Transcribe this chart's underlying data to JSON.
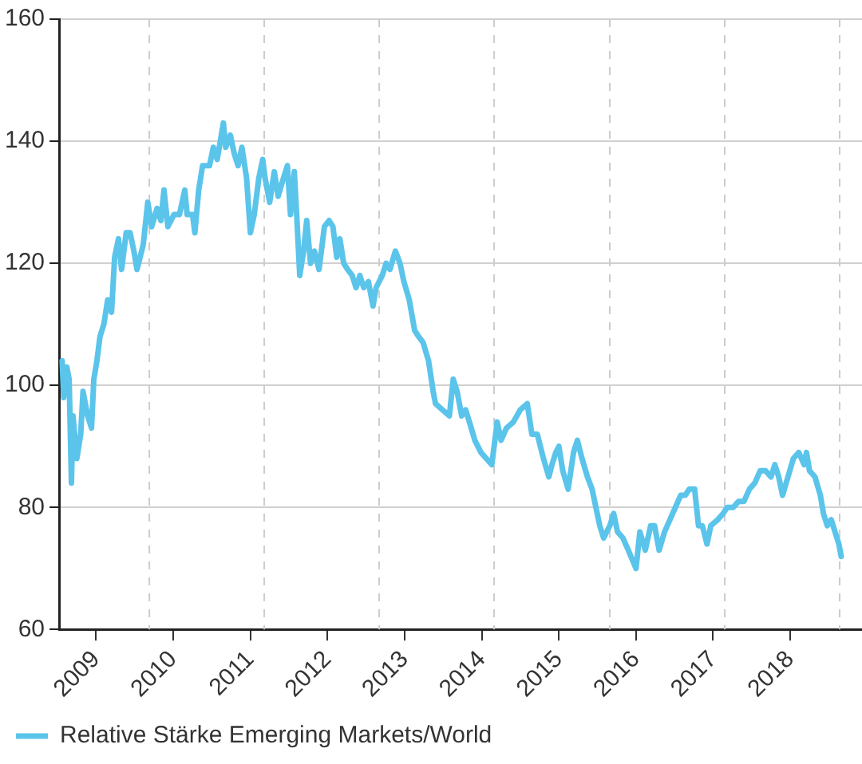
{
  "chart_data": {
    "type": "line",
    "series": [
      {
        "name": "Relative Stärke Emerging Markets/World",
        "color": "#5bc4ea",
        "x": [
          2008.56,
          2008.58,
          2008.62,
          2008.65,
          2008.68,
          2008.7,
          2008.75,
          2008.8,
          2008.83,
          2008.89,
          2008.94,
          2008.97,
          2009.01,
          2009.05,
          2009.1,
          2009.15,
          2009.2,
          2009.24,
          2009.29,
          2009.33,
          2009.39,
          2009.44,
          2009.49,
          2009.53,
          2009.61,
          2009.67,
          2009.72,
          2009.79,
          2009.84,
          2009.88,
          2009.93,
          2010.01,
          2010.08,
          2010.15,
          2010.18,
          2010.25,
          2010.28,
          2010.33,
          2010.38,
          2010.47,
          2010.52,
          2010.57,
          2010.65,
          2010.68,
          2010.74,
          2010.79,
          2010.84,
          2010.89,
          2010.95,
          2011.0,
          2011.05,
          2011.11,
          2011.16,
          2011.19,
          2011.25,
          2011.31,
          2011.36,
          2011.43,
          2011.48,
          2011.52,
          2011.57,
          2011.6,
          2011.64,
          2011.69,
          2011.73,
          2011.78,
          2011.83,
          2011.89,
          2011.96,
          2012.02,
          2012.07,
          2012.12,
          2012.16,
          2012.21,
          2012.26,
          2012.32,
          2012.37,
          2012.42,
          2012.47,
          2012.53,
          2012.59,
          2012.63,
          2012.71,
          2012.76,
          2012.81,
          2012.88,
          2012.94,
          2012.99,
          2013.06,
          2013.13,
          2013.18,
          2013.24,
          2013.31,
          2013.37,
          2013.4,
          2013.49,
          2013.58,
          2013.63,
          2013.68,
          2013.74,
          2013.79,
          2013.84,
          2013.91,
          2013.99,
          2014.13,
          2014.2,
          2014.25,
          2014.32,
          2014.41,
          2014.5,
          2014.59,
          2014.65,
          2014.72,
          2014.8,
          2014.87,
          2014.91,
          2014.96,
          2015.0,
          2015.05,
          2015.12,
          2015.19,
          2015.24,
          2015.3,
          2015.37,
          2015.43,
          2015.48,
          2015.53,
          2015.58,
          2015.66,
          2015.71,
          2015.76,
          2015.83,
          2015.9,
          2016.0,
          2016.05,
          2016.12,
          2016.19,
          2016.24,
          2016.3,
          2016.37,
          2016.44,
          2016.51,
          2016.58,
          2016.64,
          2016.69,
          2016.76,
          2016.81,
          2016.86,
          2016.92,
          2016.97,
          2017.06,
          2017.13,
          2017.18,
          2017.26,
          2017.33,
          2017.4,
          2017.47,
          2017.54,
          2017.61,
          2017.68,
          2017.75,
          2017.8,
          2017.85,
          2017.9,
          2017.97,
          2018.04,
          2018.11,
          2018.18,
          2018.21,
          2018.25,
          2018.32,
          2018.39,
          2018.43,
          2018.48,
          2018.53,
          2018.58,
          2018.63,
          2018.66
        ],
        "values": [
          104,
          98,
          103,
          101,
          84,
          95,
          88,
          92,
          99,
          95,
          93,
          101,
          104,
          108,
          110,
          114,
          112,
          121,
          124,
          119,
          125,
          125,
          122,
          119,
          123,
          130,
          126,
          129,
          127,
          132,
          126,
          128,
          128,
          132,
          128,
          128,
          125,
          132,
          136,
          136,
          139,
          137,
          143,
          139,
          141,
          138,
          136,
          139,
          134,
          125,
          128,
          134,
          137,
          134,
          130,
          135,
          131,
          134,
          136,
          128,
          135,
          128,
          118,
          122,
          127,
          120,
          122,
          119,
          126,
          127,
          126,
          121,
          124,
          120,
          119,
          118,
          116,
          118,
          116,
          117,
          113,
          116,
          118,
          120,
          119,
          122,
          120,
          117,
          114,
          109,
          108,
          107,
          104,
          99,
          97,
          96,
          95,
          101,
          99,
          95,
          96,
          94,
          91,
          89,
          87,
          94,
          91,
          93,
          94,
          96,
          97,
          92,
          92,
          88,
          85,
          87,
          89,
          90,
          86,
          83,
          89,
          91,
          88,
          85,
          83,
          80,
          77,
          75,
          77,
          79,
          76,
          75,
          73,
          70,
          76,
          73,
          77,
          77,
          73,
          76,
          78,
          80,
          82,
          82,
          83,
          83,
          77,
          77,
          74,
          77,
          78,
          79,
          80,
          80,
          81,
          81,
          83,
          84,
          86,
          86,
          85,
          87,
          85,
          82,
          85,
          88,
          89,
          87,
          89,
          86,
          85,
          82,
          79,
          77,
          78,
          76,
          74,
          72
        ]
      }
    ],
    "xlim": [
      2008.52,
      2018.93
    ],
    "xticks": [
      2009,
      2010,
      2011,
      2012,
      2013,
      2014,
      2015,
      2016,
      2017,
      2018
    ],
    "ylim": [
      60,
      160
    ],
    "yticks": [
      60,
      80,
      100,
      120,
      140,
      160
    ],
    "grid": "y",
    "legend": "bottom",
    "marker": "none",
    "line_style": "solid",
    "ref_lines": [
      {
        "axis": "x",
        "value": 2009.69,
        "color": "#c8cdd2",
        "line_style": "dashed"
      },
      {
        "axis": "x",
        "value": 2011.18,
        "color": "#c8cdd2",
        "line_style": "dashed"
      },
      {
        "axis": "x",
        "value": 2012.67,
        "color": "#c8cdd2",
        "line_style": "dashed"
      },
      {
        "axis": "x",
        "value": 2014.16,
        "color": "#c8cdd2",
        "line_style": "dashed"
      },
      {
        "axis": "x",
        "value": 2015.66,
        "color": "#c8cdd2",
        "line_style": "dashed"
      },
      {
        "axis": "x",
        "value": 2017.15,
        "color": "#c8cdd2",
        "line_style": "dashed"
      },
      {
        "axis": "x",
        "value": 2018.64,
        "color": "#c8cdd2",
        "line_style": "dashed"
      }
    ]
  }
}
